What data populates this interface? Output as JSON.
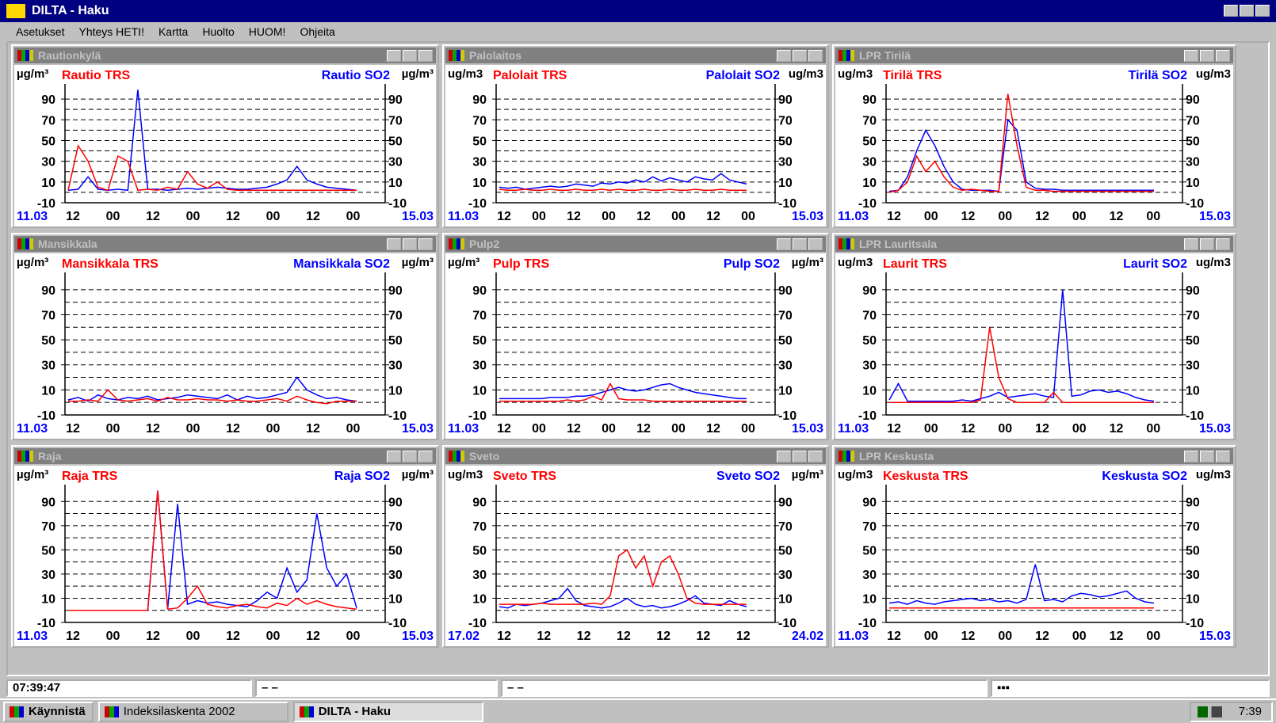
{
  "app": {
    "title": "DILTA - Haku",
    "menu": [
      "Asetukset",
      "Yhteys HETI!",
      "Kartta",
      "Huolto",
      "HUOM!",
      "Ohjeita"
    ]
  },
  "windows": [
    {
      "title": "Rautionkylä",
      "left_unit": "µg/m³",
      "right_unit": "µg/m³",
      "start": "11.03",
      "end": "15.03",
      "xticks": [
        "12",
        "00",
        "12",
        "00",
        "12",
        "00",
        "12",
        "00"
      ],
      "yticks": [
        90,
        70,
        50,
        30,
        10,
        -10
      ],
      "ylim": [
        -10,
        100
      ],
      "gridlines": [
        0,
        10,
        20,
        30,
        40,
        50,
        60,
        70,
        80,
        90
      ],
      "series": [
        {
          "name": "Rautio TRS",
          "color": "#ff0000",
          "values": [
            2,
            45,
            30,
            5,
            2,
            35,
            30,
            2,
            3,
            2,
            5,
            3,
            20,
            8,
            4,
            10,
            3,
            2,
            2,
            2,
            2,
            2,
            2,
            2,
            2,
            2,
            2,
            2,
            2,
            2
          ]
        },
        {
          "name": "Rautio SO2",
          "color": "#0000ff",
          "values": [
            2,
            3,
            15,
            3,
            2,
            3,
            2,
            99,
            3,
            3,
            2,
            3,
            4,
            3,
            4,
            5,
            4,
            3,
            3,
            4,
            5,
            8,
            12,
            25,
            12,
            8,
            5,
            4,
            3,
            2
          ]
        }
      ]
    },
    {
      "title": "Palolaitos",
      "left_unit": "ug/m3",
      "right_unit": "ug/m3",
      "start": "11.03",
      "end": "15.03",
      "xticks": [
        "12",
        "00",
        "12",
        "00",
        "12",
        "00",
        "12",
        "00"
      ],
      "yticks": [
        90,
        70,
        50,
        30,
        10,
        -10
      ],
      "ylim": [
        -10,
        100
      ],
      "gridlines": [
        0,
        10,
        20,
        30,
        40,
        50,
        60,
        70,
        80,
        90
      ],
      "series": [
        {
          "name": "Palolait TRS",
          "color": "#ff0000",
          "values": [
            3,
            2,
            2,
            3,
            2,
            2,
            3,
            2,
            2,
            3,
            2,
            2,
            3,
            2,
            3,
            2,
            2,
            3,
            2,
            2,
            3,
            2,
            2,
            3,
            2,
            2,
            3,
            2,
            2,
            2
          ]
        },
        {
          "name": "Palolait SO2",
          "color": "#0000ff",
          "values": [
            5,
            4,
            5,
            3,
            4,
            5,
            6,
            5,
            6,
            8,
            7,
            6,
            9,
            8,
            10,
            9,
            12,
            10,
            15,
            11,
            14,
            12,
            10,
            15,
            13,
            12,
            18,
            12,
            10,
            8
          ]
        }
      ]
    },
    {
      "title": "LPR Tirilä",
      "left_unit": "ug/m3",
      "right_unit": "ug/m3",
      "start": "11.03",
      "end": "15.03",
      "xticks": [
        "12",
        "00",
        "12",
        "00",
        "12",
        "00",
        "12",
        "00"
      ],
      "yticks": [
        90,
        70,
        50,
        30,
        10,
        -10
      ],
      "ylim": [
        -10,
        100
      ],
      "gridlines": [
        0,
        10,
        20,
        30,
        40,
        50,
        60,
        70,
        80,
        90
      ],
      "series": [
        {
          "name": "Tirilä TRS",
          "color": "#ff0000",
          "values": [
            0,
            2,
            10,
            35,
            20,
            30,
            15,
            5,
            2,
            3,
            2,
            1,
            1,
            95,
            45,
            5,
            2,
            2,
            1,
            1,
            1,
            1,
            1,
            1,
            1,
            1,
            1,
            1,
            1,
            1
          ]
        },
        {
          "name": "Tirilä SO2",
          "color": "#0000ff",
          "values": [
            1,
            2,
            15,
            40,
            60,
            45,
            25,
            10,
            3,
            2,
            2,
            2,
            1,
            70,
            60,
            10,
            4,
            3,
            3,
            2,
            2,
            2,
            2,
            2,
            2,
            2,
            2,
            2,
            2,
            2
          ]
        }
      ]
    },
    {
      "title": "Mansikkala",
      "left_unit": "µg/m³",
      "right_unit": "µg/m³",
      "start": "11.03",
      "end": "15.03",
      "xticks": [
        "12",
        "00",
        "12",
        "00",
        "12",
        "00",
        "12",
        "00"
      ],
      "yticks": [
        90,
        70,
        50,
        30,
        10,
        -10
      ],
      "ylim": [
        -10,
        100
      ],
      "gridlines": [
        0,
        10,
        20,
        30,
        40,
        50,
        60,
        70,
        80,
        90
      ],
      "series": [
        {
          "name": "Mansikkala TRS",
          "color": "#ff0000",
          "values": [
            1,
            1,
            2,
            1,
            10,
            2,
            1,
            2,
            3,
            1,
            4,
            2,
            2,
            3,
            2,
            2,
            1,
            2,
            1,
            1,
            2,
            3,
            1,
            5,
            2,
            0,
            -1,
            1,
            1,
            1
          ]
        },
        {
          "name": "Mansikkala SO2",
          "color": "#0000ff",
          "values": [
            2,
            4,
            1,
            6,
            3,
            2,
            4,
            3,
            5,
            2,
            3,
            4,
            6,
            5,
            4,
            3,
            6,
            2,
            5,
            3,
            4,
            6,
            8,
            20,
            10,
            6,
            3,
            4,
            2,
            1
          ]
        }
      ]
    },
    {
      "title": "Pulp2",
      "left_unit": "µg/m³",
      "right_unit": "µg/m³",
      "start": "11.03",
      "end": "15.03",
      "xticks": [
        "12",
        "00",
        "12",
        "00",
        "12",
        "00",
        "12",
        "00"
      ],
      "yticks": [
        90,
        70,
        50,
        30,
        10,
        -10
      ],
      "ylim": [
        -10,
        100
      ],
      "gridlines": [
        0,
        10,
        20,
        30,
        40,
        50,
        60,
        70,
        80,
        90
      ],
      "series": [
        {
          "name": "Pulp TRS",
          "color": "#ff0000",
          "values": [
            1,
            1,
            1,
            1,
            1,
            1,
            1,
            1,
            2,
            1,
            2,
            5,
            2,
            15,
            3,
            2,
            2,
            2,
            1,
            1,
            1,
            1,
            1,
            1,
            1,
            1,
            1,
            1,
            1,
            1
          ]
        },
        {
          "name": "Pulp SO2",
          "color": "#0000ff",
          "values": [
            3,
            3,
            3,
            3,
            3,
            3,
            4,
            4,
            4,
            5,
            5,
            6,
            8,
            10,
            12,
            10,
            9,
            10,
            12,
            14,
            15,
            12,
            10,
            8,
            7,
            6,
            5,
            4,
            3,
            3
          ]
        }
      ]
    },
    {
      "title": "LPR Lauritsala",
      "left_unit": "ug/m3",
      "right_unit": "ug/m3",
      "start": "11.03",
      "end": "15.03",
      "xticks": [
        "12",
        "00",
        "12",
        "00",
        "12",
        "00",
        "12",
        "00"
      ],
      "yticks": [
        90,
        70,
        50,
        30,
        10,
        -10
      ],
      "ylim": [
        -10,
        100
      ],
      "gridlines": [
        0,
        10,
        20,
        30,
        40,
        50,
        60,
        70,
        80,
        90
      ],
      "series": [
        {
          "name": "Laurit TRS",
          "color": "#ff0000",
          "values": [
            0,
            0,
            0,
            0,
            0,
            0,
            0,
            0,
            0,
            0,
            2,
            60,
            20,
            3,
            0,
            0,
            0,
            0,
            8,
            0,
            0,
            0,
            0,
            0,
            0,
            0,
            0,
            0,
            0,
            0
          ]
        },
        {
          "name": "Laurit SO2",
          "color": "#0000ff",
          "values": [
            2,
            15,
            1,
            1,
            1,
            1,
            1,
            1,
            2,
            1,
            3,
            5,
            8,
            4,
            5,
            6,
            7,
            5,
            4,
            90,
            5,
            6,
            9,
            10,
            8,
            9,
            7,
            4,
            2,
            1
          ]
        }
      ]
    },
    {
      "title": "Raja",
      "left_unit": "µg/m³",
      "right_unit": "µg/m³",
      "start": "11.03",
      "end": "15.03",
      "xticks": [
        "12",
        "00",
        "12",
        "00",
        "12",
        "00",
        "12",
        "00"
      ],
      "yticks": [
        90,
        70,
        50,
        30,
        10,
        -10
      ],
      "ylim": [
        -10,
        100
      ],
      "gridlines": [
        0,
        10,
        20,
        30,
        40,
        50,
        60,
        70,
        80,
        90
      ],
      "series": [
        {
          "name": "Raja TRS",
          "color": "#ff0000",
          "values": [
            0,
            0,
            0,
            0,
            0,
            0,
            0,
            0,
            0,
            99,
            1,
            2,
            10,
            20,
            5,
            3,
            2,
            4,
            5,
            3,
            2,
            6,
            4,
            10,
            5,
            8,
            5,
            3,
            2,
            1
          ]
        },
        {
          "name": "Raja SO2",
          "color": "#0000ff",
          "values": [
            0,
            0,
            0,
            0,
            0,
            0,
            0,
            0,
            0,
            99,
            1,
            88,
            5,
            8,
            6,
            7,
            5,
            4,
            3,
            8,
            15,
            10,
            35,
            15,
            25,
            80,
            35,
            20,
            30,
            2
          ]
        }
      ]
    },
    {
      "title": "Sveto",
      "left_unit": "ug/m3",
      "right_unit": "µg/m³",
      "start": "17.02",
      "end": "24.02",
      "xticks": [
        "12",
        "12",
        "12",
        "12",
        "12",
        "12",
        "12"
      ],
      "yticks": [
        90,
        70,
        50,
        30,
        10,
        -10
      ],
      "ylim": [
        -10,
        100
      ],
      "gridlines": [
        0,
        10,
        20,
        30,
        40,
        50,
        60,
        70,
        80,
        90
      ],
      "series": [
        {
          "name": "Sveto TRS",
          "color": "#ff0000",
          "values": [
            5,
            5,
            5,
            5,
            5,
            6,
            5,
            5,
            5,
            5,
            5,
            6,
            5,
            12,
            45,
            50,
            35,
            45,
            20,
            40,
            45,
            30,
            10,
            6,
            5,
            5,
            5,
            5,
            5,
            5
          ]
        },
        {
          "name": "Sveto SO2",
          "color": "#0000ff",
          "values": [
            3,
            2,
            5,
            4,
            5,
            6,
            8,
            10,
            18,
            8,
            4,
            3,
            2,
            3,
            6,
            10,
            5,
            3,
            4,
            2,
            3,
            5,
            8,
            12,
            6,
            5,
            4,
            8,
            5,
            3
          ]
        }
      ]
    },
    {
      "title": "LPR Keskusta",
      "left_unit": "ug/m3",
      "right_unit": "ug/m3",
      "start": "11.03",
      "end": "15.03",
      "xticks": [
        "12",
        "00",
        "12",
        "00",
        "12",
        "00",
        "12",
        "00"
      ],
      "yticks": [
        90,
        70,
        50,
        30,
        10,
        -10
      ],
      "ylim": [
        -10,
        100
      ],
      "gridlines": [
        0,
        10,
        20,
        30,
        40,
        50,
        60,
        70,
        80,
        90
      ],
      "series": [
        {
          "name": "Keskusta TRS",
          "color": "#ff0000",
          "values": [
            2,
            2,
            2,
            2,
            2,
            2,
            2,
            2,
            2,
            2,
            2,
            2,
            2,
            2,
            2,
            2,
            2,
            2,
            2,
            2,
            2,
            2,
            2,
            2,
            2,
            2,
            2,
            2,
            2,
            2
          ]
        },
        {
          "name": "Keskusta SO2",
          "color": "#0000ff",
          "values": [
            6,
            7,
            5,
            8,
            6,
            5,
            7,
            8,
            9,
            10,
            8,
            9,
            7,
            8,
            6,
            9,
            38,
            8,
            9,
            7,
            12,
            14,
            13,
            11,
            12,
            14,
            16,
            10,
            7,
            6
          ]
        }
      ]
    }
  ],
  "status": [
    "07:39:47",
    "– –",
    "– –",
    "▪▪▪"
  ],
  "taskbar": {
    "start": "Käynnistä",
    "tasks": [
      "Indeksilaskenta 2002",
      "DILTA - Haku"
    ],
    "clock": "7:39"
  }
}
